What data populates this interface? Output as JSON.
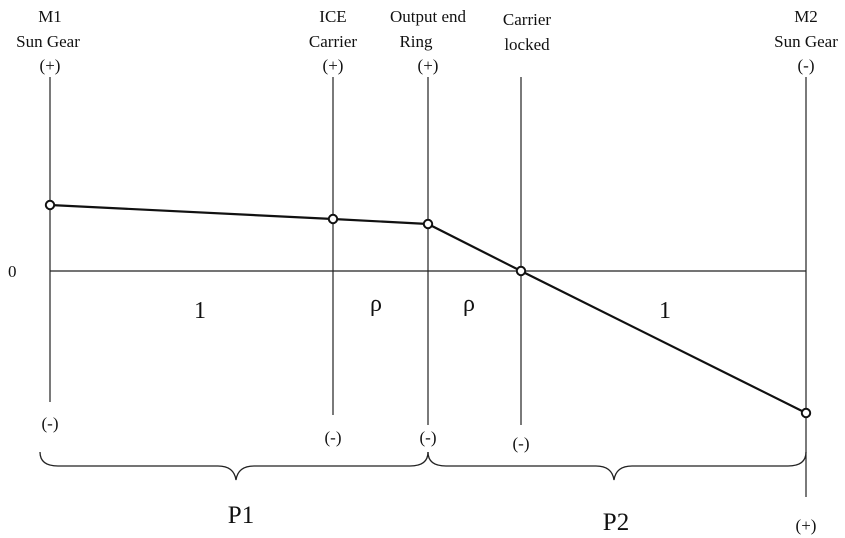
{
  "columns": {
    "m1": {
      "label_line1": "M1",
      "label_line2": "Sun Gear",
      "top_sign": "(+)",
      "bottom_sign": "(-)"
    },
    "ice": {
      "label_line1": "ICE",
      "label_line2": "Carrier",
      "top_sign": "(+)",
      "bottom_sign": "(-)"
    },
    "ring": {
      "label_line1": "Output end",
      "label_line2": "Ring",
      "top_sign": "(+)",
      "bottom_sign": "(-)"
    },
    "carrier_locked": {
      "label_line1": "Carrier",
      "label_line2": "locked",
      "bottom_sign": "(-)"
    },
    "m2": {
      "label_line1": "M2",
      "label_line2": "Sun Gear",
      "top_sign": "(-)",
      "bottom_sign": "(+)"
    }
  },
  "zero_label": "0",
  "segments": {
    "m1_to_ice": "1",
    "ice_to_ring": "ρ",
    "ring_to_carrier": "ρ",
    "carrier_to_m2": "1"
  },
  "groups": {
    "p1": "P1",
    "p2": "P2"
  },
  "colors": {
    "line": "#111111",
    "node_fill": "#ffffff"
  }
}
